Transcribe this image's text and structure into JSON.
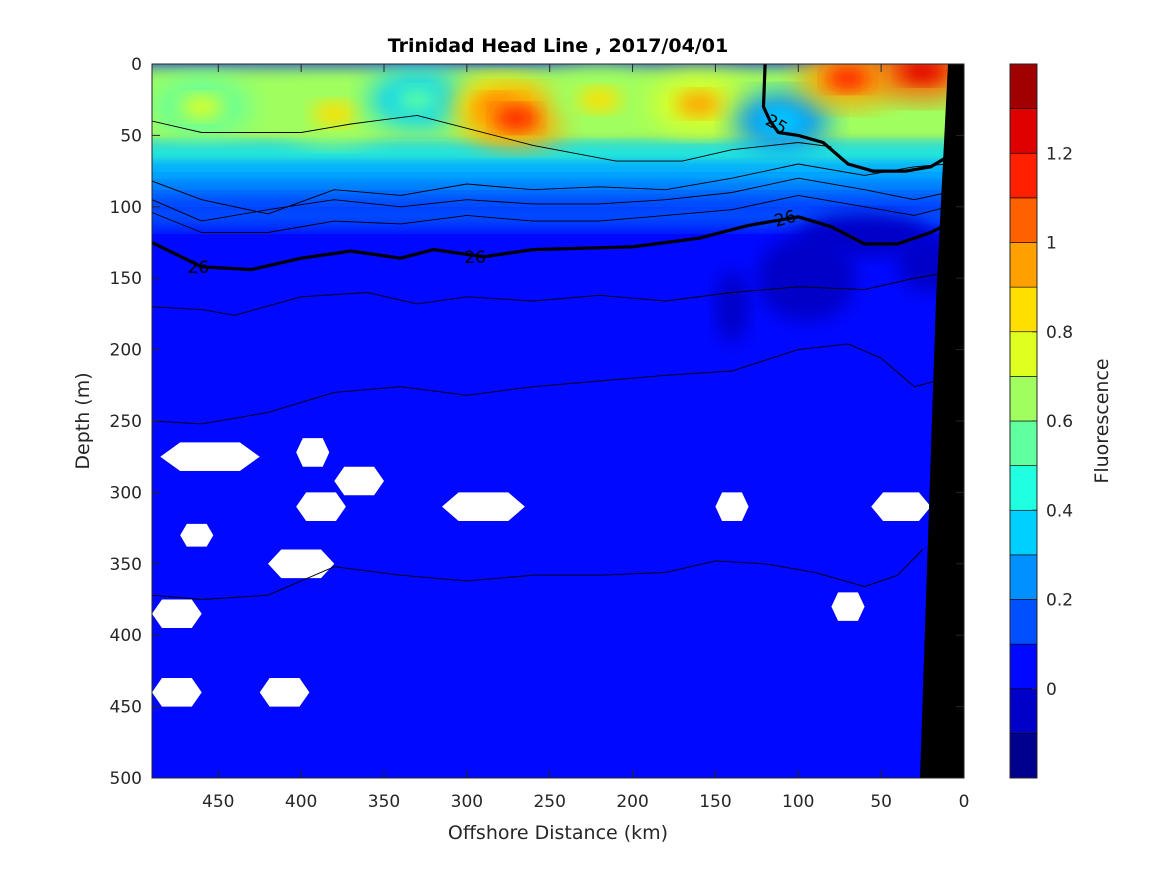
{
  "chart_data": {
    "type": "heatmap",
    "title": "Trinidad Head Line , 2017/04/01",
    "xlabel": "Offshore Distance (km)",
    "ylabel": "Depth (m)",
    "xlim": [
      490,
      0
    ],
    "ylim": [
      0,
      500
    ],
    "x_ticks": [
      450,
      400,
      350,
      300,
      250,
      200,
      150,
      100,
      50,
      0
    ],
    "y_ticks": [
      0,
      50,
      100,
      150,
      200,
      250,
      300,
      350,
      400,
      450,
      500
    ],
    "colorbar": {
      "label": "Fluorescence",
      "range": [
        -0.2,
        1.4
      ],
      "ticks": [
        0,
        0.2,
        0.4,
        0.6,
        0.8,
        1,
        1.2
      ],
      "levels": [
        -0.2,
        -0.1,
        0,
        0.1,
        0.2,
        0.3,
        0.4,
        0.5,
        0.6,
        0.7,
        0.8,
        0.9,
        1.0,
        1.1,
        1.2,
        1.3,
        1.4
      ],
      "colors": [
        "#00008f",
        "#0000c8",
        "#0008ff",
        "#0050ff",
        "#0090ff",
        "#00d0ff",
        "#20ffdf",
        "#60ff9f",
        "#a0ff5f",
        "#dfff20",
        "#ffdf00",
        "#ffa000",
        "#ff6000",
        "#ff2000",
        "#df0000",
        "#a00000"
      ]
    },
    "surface_bloom": [
      {
        "x": 460,
        "depth": 30,
        "value": 0.7
      },
      {
        "x": 380,
        "depth": 35,
        "value": 0.8
      },
      {
        "x": 330,
        "depth": 25,
        "value": 0.5
      },
      {
        "x": 280,
        "depth": 30,
        "value": 1.0
      },
      {
        "x": 270,
        "depth": 38,
        "value": 1.1
      },
      {
        "x": 220,
        "depth": 25,
        "value": 0.8
      },
      {
        "x": 160,
        "depth": 28,
        "value": 0.9
      },
      {
        "x": 110,
        "depth": 40,
        "value": 0.3
      },
      {
        "x": 70,
        "depth": 10,
        "value": 1.1
      },
      {
        "x": 25,
        "depth": 5,
        "value": 1.2
      }
    ],
    "contours": [
      {
        "level": 25,
        "label": "25",
        "bold": true,
        "points": [
          [
            120,
            0
          ],
          [
            121,
            30
          ],
          [
            117,
            40
          ],
          [
            112,
            48
          ],
          [
            100,
            50
          ],
          [
            85,
            55
          ],
          [
            70,
            70
          ],
          [
            55,
            75
          ],
          [
            35,
            75
          ],
          [
            20,
            72
          ],
          [
            10,
            65
          ]
        ]
      },
      {
        "level": 26,
        "label": "26",
        "bold": true,
        "points": [
          [
            490,
            125
          ],
          [
            460,
            142
          ],
          [
            430,
            144
          ],
          [
            400,
            136
          ],
          [
            370,
            131
          ],
          [
            340,
            136
          ],
          [
            320,
            130
          ],
          [
            290,
            135
          ],
          [
            260,
            130
          ],
          [
            200,
            128
          ],
          [
            160,
            122
          ],
          [
            130,
            113
          ],
          [
            100,
            107
          ],
          [
            80,
            114
          ],
          [
            60,
            126
          ],
          [
            40,
            126
          ],
          [
            20,
            118
          ],
          [
            10,
            112
          ]
        ]
      },
      {
        "level": 25.5,
        "label": "",
        "bold": false,
        "points": [
          [
            490,
            40
          ],
          [
            460,
            48
          ],
          [
            420,
            48
          ],
          [
            400,
            48
          ],
          [
            370,
            42
          ],
          [
            330,
            36
          ],
          [
            300,
            45
          ],
          [
            260,
            57
          ],
          [
            210,
            68
          ],
          [
            170,
            68
          ],
          [
            140,
            60
          ],
          [
            100,
            55
          ],
          [
            80,
            58
          ]
        ]
      },
      {
        "level": 25.7,
        "label": "",
        "bold": false,
        "points": [
          [
            490,
            82
          ],
          [
            460,
            95
          ],
          [
            420,
            105
          ],
          [
            380,
            88
          ],
          [
            340,
            92
          ],
          [
            300,
            84
          ],
          [
            260,
            88
          ],
          [
            220,
            86
          ],
          [
            180,
            88
          ],
          [
            140,
            80
          ],
          [
            100,
            70
          ],
          [
            60,
            78
          ],
          [
            30,
            72
          ],
          [
            10,
            70
          ]
        ]
      },
      {
        "level": 25.8,
        "label": "",
        "bold": false,
        "points": [
          [
            490,
            95
          ],
          [
            460,
            110
          ],
          [
            420,
            102
          ],
          [
            380,
            95
          ],
          [
            340,
            100
          ],
          [
            300,
            95
          ],
          [
            260,
            98
          ],
          [
            220,
            98
          ],
          [
            180,
            95
          ],
          [
            140,
            90
          ],
          [
            100,
            80
          ],
          [
            60,
            88
          ],
          [
            30,
            95
          ],
          [
            10,
            90
          ]
        ]
      },
      {
        "level": 25.9,
        "label": "",
        "bold": false,
        "points": [
          [
            490,
            104
          ],
          [
            460,
            118
          ],
          [
            420,
            118
          ],
          [
            380,
            110
          ],
          [
            340,
            112
          ],
          [
            300,
            106
          ],
          [
            260,
            110
          ],
          [
            220,
            110
          ],
          [
            180,
            106
          ],
          [
            140,
            102
          ],
          [
            100,
            92
          ],
          [
            60,
            100
          ],
          [
            30,
            106
          ],
          [
            10,
            100
          ]
        ]
      },
      {
        "level": 26.2,
        "label": "",
        "bold": false,
        "points": [
          [
            490,
            170
          ],
          [
            460,
            172
          ],
          [
            440,
            176
          ],
          [
            400,
            163
          ],
          [
            360,
            160
          ],
          [
            330,
            168
          ],
          [
            300,
            163
          ],
          [
            260,
            166
          ],
          [
            220,
            162
          ],
          [
            180,
            166
          ],
          [
            140,
            160
          ],
          [
            100,
            156
          ],
          [
            60,
            158
          ],
          [
            30,
            150
          ],
          [
            10,
            146
          ]
        ]
      },
      {
        "level": 26.4,
        "label": "",
        "bold": false,
        "points": [
          [
            490,
            250
          ],
          [
            460,
            252
          ],
          [
            420,
            244
          ],
          [
            380,
            230
          ],
          [
            340,
            226
          ],
          [
            300,
            232
          ],
          [
            260,
            226
          ],
          [
            220,
            222
          ],
          [
            180,
            218
          ],
          [
            140,
            215
          ],
          [
            100,
            200
          ],
          [
            70,
            196
          ],
          [
            50,
            206
          ],
          [
            30,
            226
          ],
          [
            10,
            220
          ]
        ]
      },
      {
        "level": 26.7,
        "label": "",
        "bold": false,
        "points": [
          [
            490,
            372
          ],
          [
            460,
            375
          ],
          [
            420,
            372
          ],
          [
            380,
            352
          ],
          [
            340,
            358
          ],
          [
            300,
            362
          ],
          [
            260,
            358
          ],
          [
            220,
            358
          ],
          [
            180,
            356
          ],
          [
            150,
            348
          ],
          [
            120,
            350
          ],
          [
            90,
            356
          ],
          [
            60,
            366
          ],
          [
            40,
            358
          ],
          [
            25,
            340
          ]
        ]
      }
    ],
    "missing_patches": [
      {
        "x": 455,
        "depth": 275,
        "dx": 30,
        "dd": 10
      },
      {
        "x": 393,
        "depth": 272,
        "dx": 10,
        "dd": 10
      },
      {
        "x": 365,
        "depth": 292,
        "dx": 15,
        "dd": 10
      },
      {
        "x": 388,
        "depth": 310,
        "dx": 15,
        "dd": 10
      },
      {
        "x": 290,
        "depth": 310,
        "dx": 25,
        "dd": 10
      },
      {
        "x": 140,
        "depth": 310,
        "dx": 10,
        "dd": 10
      },
      {
        "x": 38,
        "depth": 310,
        "dx": 18,
        "dd": 10
      },
      {
        "x": 463,
        "depth": 330,
        "dx": 10,
        "dd": 8
      },
      {
        "x": 400,
        "depth": 350,
        "dx": 20,
        "dd": 10
      },
      {
        "x": 70,
        "depth": 380,
        "dx": 10,
        "dd": 10
      },
      {
        "x": 475,
        "depth": 385,
        "dx": 15,
        "dd": 10
      },
      {
        "x": 475,
        "depth": 440,
        "dx": 15,
        "dd": 10
      },
      {
        "x": 410,
        "depth": 440,
        "dx": 15,
        "dd": 10
      }
    ]
  }
}
